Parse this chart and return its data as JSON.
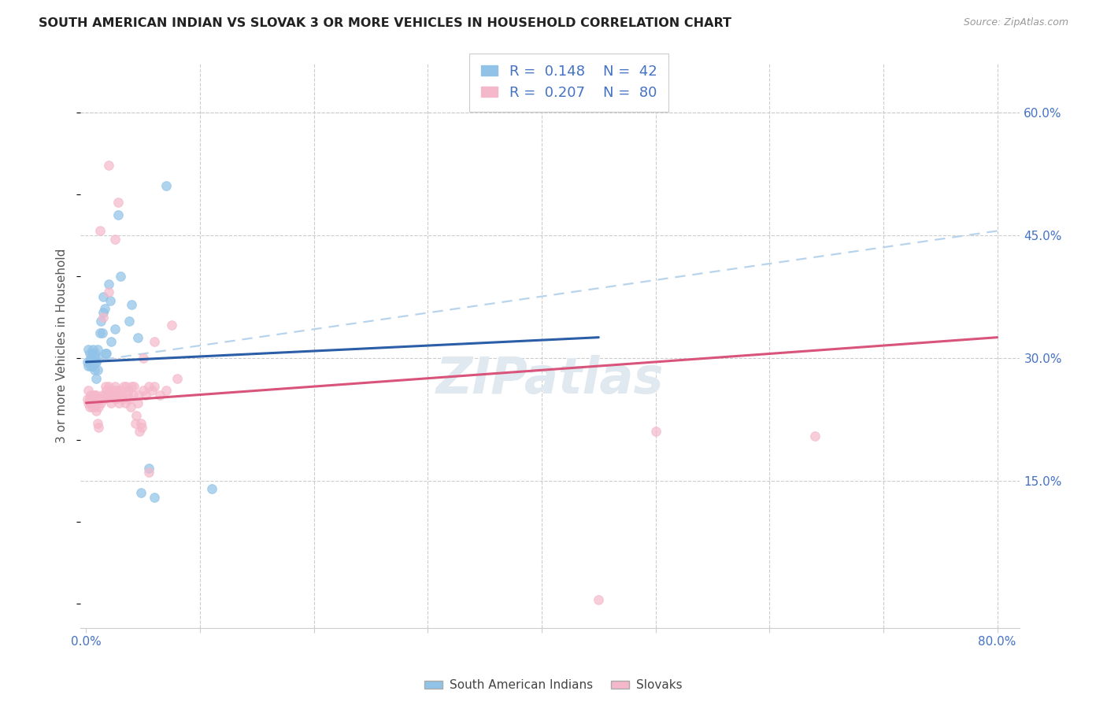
{
  "title": "SOUTH AMERICAN INDIAN VS SLOVAK 3 OR MORE VEHICLES IN HOUSEHOLD CORRELATION CHART",
  "source": "Source: ZipAtlas.com",
  "ylabel": "3 or more Vehicles in Household",
  "xlim": [
    -0.005,
    0.82
  ],
  "ylim": [
    -0.03,
    0.66
  ],
  "xtick_positions": [
    0.0,
    0.1,
    0.2,
    0.3,
    0.4,
    0.5,
    0.6,
    0.7,
    0.8
  ],
  "xticklabels": [
    "0.0%",
    "",
    "",
    "",
    "",
    "",
    "",
    "",
    "80.0%"
  ],
  "ytick_right_labels": [
    "60.0%",
    "45.0%",
    "30.0%",
    "15.0%"
  ],
  "ytick_right_values": [
    0.6,
    0.45,
    0.3,
    0.15
  ],
  "legend_labels": [
    "South American Indians",
    "Slovaks"
  ],
  "legend_r": [
    "0.148",
    "0.207"
  ],
  "legend_n": [
    "42",
    "80"
  ],
  "blue_scatter_color": "#91C3E8",
  "pink_scatter_color": "#F5B8CA",
  "blue_line_color": "#2B5EA7",
  "pink_line_color": "#D9547A",
  "blue_dash_color": "#B8D4EC",
  "title_color": "#222222",
  "source_color": "#999999",
  "axis_label_color": "#4472C4",
  "ylabel_color": "#555555",
  "grid_color": "#CCCCCC",
  "blue_line_x0": 0.0,
  "blue_line_y0": 0.295,
  "blue_line_x1": 0.45,
  "blue_line_y1": 0.325,
  "pink_line_x0": 0.0,
  "pink_line_y0": 0.245,
  "pink_line_x1": 0.8,
  "pink_line_y1": 0.325,
  "dash_line_x0": 0.0,
  "dash_line_y0": 0.295,
  "dash_line_x1": 0.8,
  "dash_line_y1": 0.455,
  "blue_scatter": [
    [
      0.001,
      0.295
    ],
    [
      0.002,
      0.31
    ],
    [
      0.002,
      0.29
    ],
    [
      0.003,
      0.305
    ],
    [
      0.003,
      0.295
    ],
    [
      0.004,
      0.3
    ],
    [
      0.004,
      0.29
    ],
    [
      0.005,
      0.305
    ],
    [
      0.005,
      0.29
    ],
    [
      0.006,
      0.31
    ],
    [
      0.006,
      0.295
    ],
    [
      0.007,
      0.3
    ],
    [
      0.007,
      0.285
    ],
    [
      0.008,
      0.305
    ],
    [
      0.008,
      0.295
    ],
    [
      0.009,
      0.295
    ],
    [
      0.009,
      0.275
    ],
    [
      0.01,
      0.31
    ],
    [
      0.01,
      0.285
    ],
    [
      0.011,
      0.3
    ],
    [
      0.012,
      0.33
    ],
    [
      0.013,
      0.345
    ],
    [
      0.014,
      0.33
    ],
    [
      0.015,
      0.355
    ],
    [
      0.015,
      0.375
    ],
    [
      0.016,
      0.36
    ],
    [
      0.017,
      0.305
    ],
    [
      0.018,
      0.305
    ],
    [
      0.02,
      0.39
    ],
    [
      0.021,
      0.37
    ],
    [
      0.022,
      0.32
    ],
    [
      0.025,
      0.335
    ],
    [
      0.028,
      0.475
    ],
    [
      0.03,
      0.4
    ],
    [
      0.038,
      0.345
    ],
    [
      0.04,
      0.365
    ],
    [
      0.045,
      0.325
    ],
    [
      0.048,
      0.135
    ],
    [
      0.055,
      0.165
    ],
    [
      0.06,
      0.13
    ],
    [
      0.07,
      0.51
    ],
    [
      0.11,
      0.14
    ]
  ],
  "pink_scatter": [
    [
      0.001,
      0.25
    ],
    [
      0.002,
      0.245
    ],
    [
      0.002,
      0.26
    ],
    [
      0.003,
      0.25
    ],
    [
      0.003,
      0.24
    ],
    [
      0.004,
      0.255
    ],
    [
      0.004,
      0.245
    ],
    [
      0.005,
      0.25
    ],
    [
      0.005,
      0.24
    ],
    [
      0.006,
      0.255
    ],
    [
      0.006,
      0.245
    ],
    [
      0.007,
      0.255
    ],
    [
      0.007,
      0.24
    ],
    [
      0.008,
      0.25
    ],
    [
      0.008,
      0.245
    ],
    [
      0.009,
      0.255
    ],
    [
      0.009,
      0.235
    ],
    [
      0.01,
      0.25
    ],
    [
      0.01,
      0.22
    ],
    [
      0.011,
      0.24
    ],
    [
      0.011,
      0.215
    ],
    [
      0.012,
      0.25
    ],
    [
      0.013,
      0.245
    ],
    [
      0.014,
      0.255
    ],
    [
      0.015,
      0.35
    ],
    [
      0.015,
      0.25
    ],
    [
      0.016,
      0.255
    ],
    [
      0.017,
      0.265
    ],
    [
      0.018,
      0.26
    ],
    [
      0.019,
      0.255
    ],
    [
      0.02,
      0.265
    ],
    [
      0.021,
      0.255
    ],
    [
      0.022,
      0.245
    ],
    [
      0.023,
      0.26
    ],
    [
      0.024,
      0.255
    ],
    [
      0.025,
      0.265
    ],
    [
      0.026,
      0.25
    ],
    [
      0.027,
      0.26
    ],
    [
      0.028,
      0.255
    ],
    [
      0.029,
      0.245
    ],
    [
      0.03,
      0.26
    ],
    [
      0.031,
      0.255
    ],
    [
      0.032,
      0.25
    ],
    [
      0.033,
      0.265
    ],
    [
      0.034,
      0.245
    ],
    [
      0.035,
      0.265
    ],
    [
      0.036,
      0.255
    ],
    [
      0.037,
      0.26
    ],
    [
      0.038,
      0.25
    ],
    [
      0.039,
      0.24
    ],
    [
      0.04,
      0.265
    ],
    [
      0.041,
      0.255
    ],
    [
      0.042,
      0.265
    ],
    [
      0.043,
      0.22
    ],
    [
      0.044,
      0.23
    ],
    [
      0.045,
      0.245
    ],
    [
      0.046,
      0.255
    ],
    [
      0.047,
      0.21
    ],
    [
      0.048,
      0.22
    ],
    [
      0.049,
      0.215
    ],
    [
      0.05,
      0.26
    ],
    [
      0.052,
      0.255
    ],
    [
      0.055,
      0.265
    ],
    [
      0.058,
      0.26
    ],
    [
      0.06,
      0.265
    ],
    [
      0.065,
      0.255
    ],
    [
      0.07,
      0.26
    ],
    [
      0.075,
      0.34
    ],
    [
      0.08,
      0.275
    ],
    [
      0.025,
      0.445
    ],
    [
      0.028,
      0.49
    ],
    [
      0.02,
      0.38
    ],
    [
      0.05,
      0.3
    ],
    [
      0.06,
      0.32
    ],
    [
      0.5,
      0.21
    ],
    [
      0.64,
      0.205
    ],
    [
      0.45,
      0.005
    ],
    [
      0.02,
      0.535
    ],
    [
      0.012,
      0.455
    ],
    [
      0.055,
      0.16
    ]
  ],
  "watermark": "ZIPatlas",
  "watermark_color": "#E0E8F0"
}
